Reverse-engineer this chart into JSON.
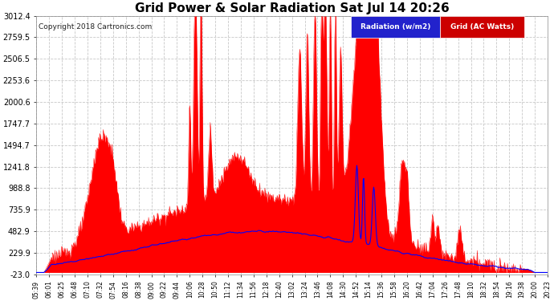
{
  "title": "Grid Power & Solar Radiation Sat Jul 14 20:26",
  "copyright": "Copyright 2018 Cartronics.com",
  "legend_radiation": "Radiation (w/m2)",
  "legend_grid": "Grid (AC Watts)",
  "ylabel_values": [
    3012.4,
    2759.5,
    2506.5,
    2253.6,
    2000.6,
    1747.7,
    1494.7,
    1241.8,
    988.8,
    735.9,
    482.9,
    229.9,
    -23.0
  ],
  "xtick_labels": [
    "05:39",
    "06:01",
    "06:25",
    "06:48",
    "07:10",
    "07:32",
    "07:54",
    "08:16",
    "08:38",
    "09:00",
    "09:22",
    "09:44",
    "10:06",
    "10:28",
    "10:50",
    "11:12",
    "11:34",
    "11:56",
    "12:18",
    "12:40",
    "13:02",
    "13:24",
    "13:46",
    "14:08",
    "14:30",
    "14:52",
    "15:14",
    "15:36",
    "15:58",
    "16:20",
    "16:42",
    "17:04",
    "17:26",
    "17:48",
    "18:10",
    "18:32",
    "18:54",
    "19:16",
    "19:38",
    "20:00",
    "20:23"
  ],
  "bg_color": "#ffffff",
  "grid_color": "#c8c8c8",
  "red_fill_color": "#ff0000",
  "blue_line_color": "#0000ff",
  "title_color": "#000000",
  "ymin": -23.0,
  "ymax": 3012.4,
  "figwidth": 6.9,
  "figheight": 3.75,
  "dpi": 100
}
